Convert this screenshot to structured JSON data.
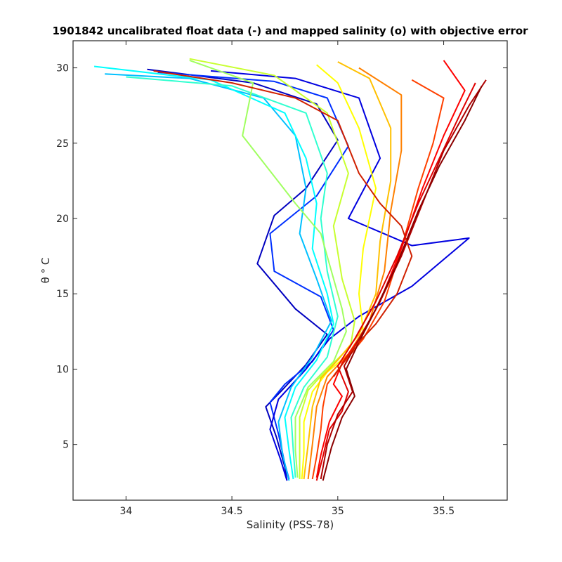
{
  "chart_data": {
    "type": "line",
    "title": "1901842 uncalibrated float data (-) and mapped salinity (o) with objective error",
    "xlabel": "Salinity (PSS-78)",
    "ylabel": "θ ° C",
    "xlim": [
      33.75,
      35.8
    ],
    "ylim": [
      1.3,
      31.8
    ],
    "xticks": [
      "34",
      "34.5",
      "35",
      "35.5"
    ],
    "yticks": [
      "5",
      "10",
      "15",
      "20",
      "25",
      "30"
    ],
    "grid": false,
    "legend": "none",
    "colormap": "jet",
    "colormap_stops": [
      "#00008f",
      "#0000ff",
      "#00ffff",
      "#ffff00",
      "#ff0000",
      "#800000"
    ],
    "series": [
      {
        "color": "#0000c0",
        "x": [
          34.1,
          34.6,
          34.9,
          35.0,
          34.85,
          34.7,
          34.62,
          34.8,
          34.95,
          34.85,
          34.73,
          34.66,
          34.71,
          34.75,
          34.76
        ],
        "y": [
          29.9,
          29.0,
          27.6,
          25.2,
          22.0,
          20.2,
          17.0,
          14.0,
          12.3,
          10.3,
          8.5,
          7.5,
          5.5,
          3.5,
          2.6
        ]
      },
      {
        "color": "#0030ff",
        "x": [
          34.15,
          34.7,
          34.95,
          35.05,
          34.9,
          34.68,
          34.7,
          34.92,
          34.98,
          34.88,
          34.75,
          34.68,
          34.72,
          34.75,
          34.77
        ],
        "y": [
          29.7,
          29.1,
          28.0,
          24.8,
          21.5,
          19.0,
          16.5,
          14.8,
          12.6,
          10.5,
          9.0,
          7.8,
          5.7,
          3.7,
          2.7
        ]
      },
      {
        "color": "#0000e0",
        "x": [
          34.4,
          34.8,
          35.1,
          35.2,
          35.05,
          35.35,
          35.62,
          35.35,
          35.1,
          34.96,
          34.85,
          34.72,
          34.68,
          34.73,
          34.76
        ],
        "y": [
          29.8,
          29.3,
          28.0,
          24.0,
          20.0,
          18.2,
          18.7,
          15.5,
          13.5,
          12.0,
          10.0,
          8.0,
          6.0,
          4.0,
          2.6
        ]
      },
      {
        "color": "#00c0ff",
        "x": [
          33.9,
          34.3,
          34.65,
          34.8,
          34.85,
          34.82,
          34.9,
          34.97,
          34.88,
          34.78,
          34.72,
          34.74,
          34.77
        ],
        "y": [
          29.6,
          29.3,
          28.0,
          25.5,
          22.0,
          19.0,
          16.0,
          13.2,
          10.8,
          8.8,
          6.5,
          4.3,
          2.6
        ]
      },
      {
        "color": "#00ffff",
        "x": [
          33.85,
          34.4,
          34.75,
          34.85,
          34.9,
          34.88,
          34.95,
          34.98,
          34.9,
          34.8,
          34.75,
          34.77,
          34.79
        ],
        "y": [
          30.1,
          29.2,
          27.0,
          24.0,
          21.0,
          18.0,
          15.0,
          13.0,
          10.6,
          8.8,
          6.8,
          4.6,
          2.7
        ]
      },
      {
        "color": "#30ffd0",
        "x": [
          34.0,
          34.5,
          34.85,
          34.95,
          34.92,
          34.95,
          35.0,
          34.95,
          34.84,
          34.78,
          34.79,
          34.8
        ],
        "y": [
          29.4,
          28.8,
          27.0,
          23.0,
          20.0,
          16.5,
          13.5,
          10.8,
          8.8,
          6.8,
          4.6,
          2.8
        ]
      },
      {
        "color": "#a0ff60",
        "x": [
          34.3,
          34.6,
          34.55,
          34.8,
          34.92,
          34.97,
          35.02,
          35.04,
          34.98,
          34.86,
          34.8,
          34.8,
          34.81
        ],
        "y": [
          30.5,
          29.0,
          25.5,
          21.0,
          19.0,
          16.5,
          14.0,
          12.5,
          10.5,
          8.8,
          6.8,
          4.6,
          2.8
        ]
      },
      {
        "color": "#c8ff30",
        "x": [
          34.3,
          34.7,
          34.95,
          35.05,
          34.98,
          35.02,
          35.08,
          35.06,
          34.95,
          34.86,
          34.82,
          34.82,
          34.82
        ],
        "y": [
          30.6,
          29.5,
          27.0,
          23.0,
          19.5,
          16.0,
          13.2,
          11.5,
          10.0,
          8.6,
          6.8,
          4.5,
          2.7
        ]
      },
      {
        "color": "#ffff00",
        "x": [
          34.9,
          35.0,
          35.1,
          35.18,
          35.12,
          35.1,
          35.12,
          35.05,
          34.95,
          34.88,
          34.84,
          34.84,
          34.83
        ],
        "y": [
          30.2,
          29.0,
          26.0,
          22.0,
          18.0,
          15.0,
          12.5,
          11.0,
          9.8,
          8.5,
          6.5,
          4.4,
          2.7
        ]
      },
      {
        "color": "#ffc000",
        "x": [
          35.0,
          35.15,
          35.25,
          35.25,
          35.2,
          35.18,
          35.1,
          35.0,
          34.92,
          34.88,
          34.86,
          34.84
        ],
        "y": [
          30.4,
          29.3,
          26.0,
          22.5,
          18.5,
          15.0,
          12.3,
          10.6,
          9.4,
          7.5,
          5.0,
          2.7
        ]
      },
      {
        "color": "#ff8000",
        "x": [
          35.1,
          35.3,
          35.3,
          35.25,
          35.22,
          35.15,
          35.05,
          34.95,
          34.9,
          34.88,
          34.86
        ],
        "y": [
          30.0,
          28.2,
          24.5,
          20.5,
          16.5,
          13.2,
          11.0,
          9.5,
          7.5,
          5.0,
          2.7
        ]
      },
      {
        "color": "#ff4000",
        "x": [
          35.35,
          35.5,
          35.45,
          35.38,
          35.3,
          35.22,
          35.12,
          35.02,
          34.95,
          34.93,
          34.92,
          34.9,
          34.88
        ],
        "y": [
          29.2,
          28.0,
          25.0,
          22.0,
          18.0,
          14.5,
          12.0,
          10.3,
          9.0,
          7.5,
          6.0,
          4.2,
          2.7
        ]
      },
      {
        "color": "#ff0000",
        "x": [
          35.5,
          35.6,
          35.5,
          35.4,
          35.3,
          35.2,
          35.12,
          35.02,
          34.98,
          35.02,
          34.96,
          34.92,
          34.9
        ],
        "y": [
          30.5,
          28.5,
          25.5,
          22.0,
          18.0,
          14.5,
          12.4,
          10.4,
          9.0,
          8.2,
          6.5,
          4.3,
          2.8
        ]
      },
      {
        "color": "#e00000",
        "x": [
          35.65,
          35.58,
          35.48,
          35.38,
          35.28,
          35.18,
          35.08,
          35.0,
          35.05,
          35.02,
          34.96,
          34.93,
          34.9
        ],
        "y": [
          29.0,
          27.0,
          24.0,
          21.0,
          17.5,
          14.5,
          12.0,
          10.2,
          8.5,
          7.2,
          6.0,
          4.2,
          2.6
        ]
      },
      {
        "color": "#b00000",
        "x": [
          35.7,
          35.62,
          35.5,
          35.4,
          35.3,
          35.2,
          35.1,
          35.03,
          35.07,
          35.0,
          34.95,
          34.92
        ],
        "y": [
          29.2,
          27.5,
          24.5,
          21.0,
          17.5,
          14.5,
          12.0,
          10.2,
          8.5,
          7.0,
          5.0,
          2.7
        ]
      },
      {
        "color": "#8b0000",
        "x": [
          35.68,
          35.6,
          35.48,
          35.38,
          35.28,
          35.18,
          35.1,
          35.04,
          35.08,
          35.02,
          34.97,
          34.93
        ],
        "y": [
          28.8,
          26.5,
          23.5,
          20.5,
          17.0,
          14.0,
          11.8,
          10.0,
          8.2,
          6.8,
          4.8,
          2.6
        ]
      },
      {
        "color": "#d02000",
        "x": [
          34.13,
          34.5,
          34.8,
          35.0,
          35.1,
          35.2,
          35.3,
          35.35,
          35.28,
          35.18,
          35.08,
          34.98
        ],
        "y": [
          29.8,
          29.0,
          28.0,
          26.5,
          23.0,
          21.0,
          19.5,
          17.5,
          15.0,
          13.0,
          11.5,
          9.5
        ]
      }
    ]
  }
}
